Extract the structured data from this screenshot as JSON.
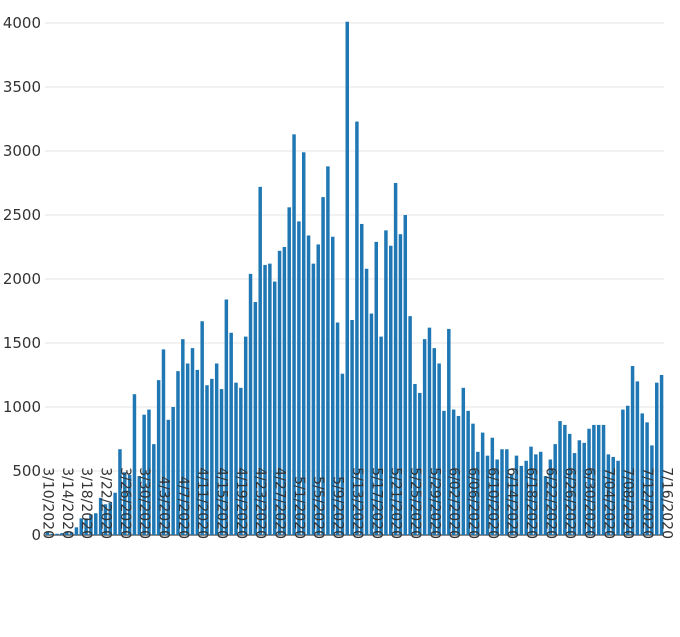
{
  "chart_data": {
    "type": "bar",
    "title": "",
    "xlabel": "",
    "ylabel": "",
    "ylim": [
      0,
      4000
    ],
    "yticks": [
      0,
      500,
      1000,
      1500,
      2000,
      2500,
      3000,
      3500,
      4000
    ],
    "grid": true,
    "legend": "none",
    "bar_color": "#1f77b4",
    "start_date": "2020-03-10",
    "x_tick_labels": [
      "3/10/2020",
      "3/14/2020",
      "3/18/2020",
      "3/22/2020",
      "3/26/2020",
      "3/30/2020",
      "4/3/2020",
      "4/7/2020",
      "4/11/2020",
      "4/15/2020",
      "4/19/2020",
      "4/23/2020",
      "4/27/2020",
      "5/1/2020",
      "5/5/2020",
      "5/9/2020",
      "5/13/2020",
      "5/17/2020",
      "5/21/2020",
      "5/25/2020",
      "5/29/2020",
      "6/02/2020",
      "6/06/2020",
      "6/10/2020",
      "6/14/2020",
      "6/18/2020",
      "6/22/2020",
      "6/26/2020",
      "6/30/2020",
      "7/04/2020",
      "7/08/2020",
      "7/12/2020",
      "7/16/2020"
    ],
    "values": [
      20,
      10,
      10,
      15,
      20,
      20,
      60,
      130,
      130,
      160,
      170,
      290,
      240,
      250,
      330,
      670,
      490,
      470,
      1100,
      460,
      940,
      980,
      710,
      1210,
      1450,
      900,
      1000,
      1280,
      1530,
      1340,
      1460,
      1290,
      1670,
      1170,
      1220,
      1340,
      1140,
      1840,
      1580,
      1190,
      1150,
      1550,
      2040,
      1820,
      2720,
      2110,
      2120,
      1980,
      2220,
      2250,
      2560,
      3130,
      2450,
      2990,
      2340,
      2120,
      2270,
      2640,
      2880,
      2330,
      1660,
      1260,
      4010,
      1680,
      3230,
      2430,
      2080,
      1730,
      2290,
      1550,
      2380,
      2260,
      2750,
      2350,
      2500,
      1710,
      1180,
      1110,
      1530,
      1620,
      1460,
      1340,
      970,
      1610,
      980,
      930,
      1150,
      970,
      870,
      650,
      800,
      620,
      760,
      590,
      670,
      670,
      470,
      620,
      540,
      580,
      690,
      630,
      650,
      460,
      590,
      710,
      890,
      860,
      790,
      640,
      740,
      720,
      830,
      860,
      860,
      860,
      630,
      610,
      580,
      980,
      1010,
      1320,
      1200,
      950,
      880,
      700,
      1190,
      1250
    ]
  }
}
